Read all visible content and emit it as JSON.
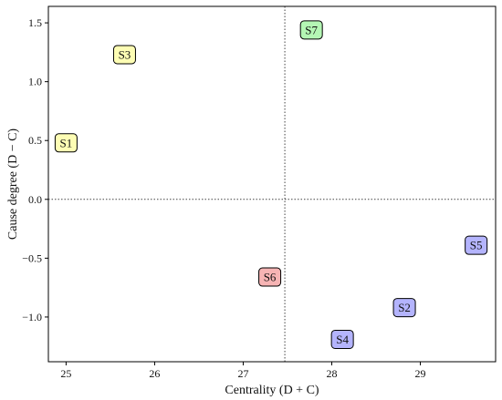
{
  "chart_data": {
    "type": "scatter",
    "title": "",
    "xlabel": "Centrality  (D + C)",
    "ylabel": "Cause degree  (D − C)",
    "xlim": [
      24.8,
      29.85
    ],
    "ylim": [
      -1.38,
      1.64
    ],
    "xticks": [
      {
        "value": 25,
        "label": "25"
      },
      {
        "value": 26,
        "label": "26"
      },
      {
        "value": 27,
        "label": "27"
      },
      {
        "value": 28,
        "label": "28"
      },
      {
        "value": 29,
        "label": "29"
      }
    ],
    "yticks": [
      {
        "value": 1.5,
        "label": "1.5"
      },
      {
        "value": 1.0,
        "label": "1.0"
      },
      {
        "value": 0.5,
        "label": "0.5"
      },
      {
        "value": 0.0,
        "label": "0.0"
      },
      {
        "value": -0.5,
        "label": "−0.5"
      },
      {
        "value": -1.0,
        "label": "−1.0"
      }
    ],
    "reference_lines": {
      "x": 27.47,
      "y": 0.0,
      "style": "dotted"
    },
    "grid": false,
    "points": [
      {
        "label": "S1",
        "x": 25.0,
        "y": 0.48,
        "color": "#fdfdb4"
      },
      {
        "label": "S2",
        "x": 28.82,
        "y": -0.92,
        "color": "#b4b4fd"
      },
      {
        "label": "S3",
        "x": 25.66,
        "y": 1.23,
        "color": "#fdfdb4"
      },
      {
        "label": "S4",
        "x": 28.12,
        "y": -1.19,
        "color": "#b4b4fd"
      },
      {
        "label": "S5",
        "x": 29.63,
        "y": -0.39,
        "color": "#b4b4fd"
      },
      {
        "label": "S6",
        "x": 27.3,
        "y": -0.66,
        "color": "#f6b4b4"
      },
      {
        "label": "S7",
        "x": 27.77,
        "y": 1.44,
        "color": "#b4f6b4"
      }
    ]
  }
}
